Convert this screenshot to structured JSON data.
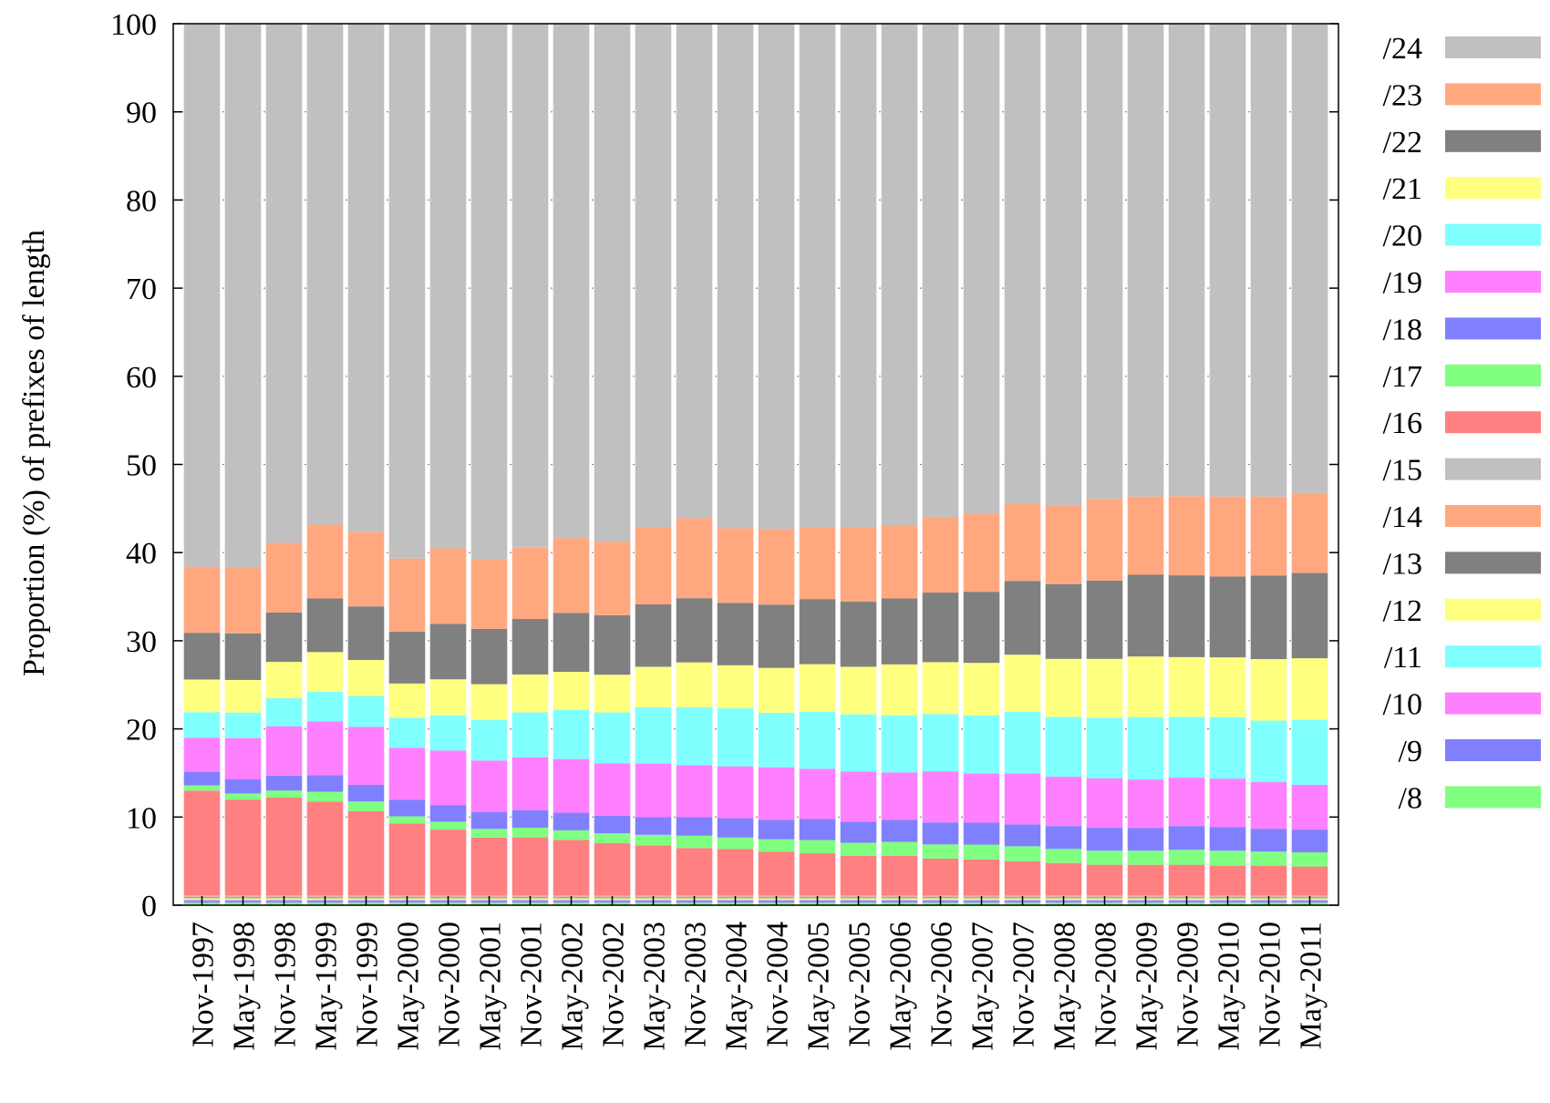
{
  "chart_data": {
    "type": "bar",
    "stacked": true,
    "title": "",
    "xlabel": "",
    "ylabel": "Proportion (%) of prefixes of length",
    "ylim": [
      0,
      100
    ],
    "yticks": [
      0,
      10,
      20,
      30,
      40,
      50,
      60,
      70,
      80,
      90,
      100
    ],
    "grid": "horizontal-dotted",
    "legend_position": "right",
    "categories": [
      "Nov-1997",
      "May-1998",
      "Nov-1998",
      "May-1999",
      "Nov-1999",
      "May-2000",
      "Nov-2000",
      "May-2001",
      "Nov-2001",
      "May-2002",
      "Nov-2002",
      "May-2003",
      "Nov-2003",
      "May-2004",
      "Nov-2004",
      "May-2005",
      "Nov-2005",
      "May-2006",
      "Nov-2006",
      "May-2007",
      "Nov-2007",
      "May-2008",
      "Nov-2008",
      "May-2009",
      "Nov-2009",
      "May-2010",
      "Nov-2010",
      "May-2011"
    ],
    "series": [
      {
        "name": "/8",
        "color": "#80ff80",
        "values": [
          0.3,
          0.3,
          0.3,
          0.3,
          0.3,
          0.3,
          0.3,
          0.3,
          0.3,
          0.3,
          0.3,
          0.3,
          0.3,
          0.3,
          0.3,
          0.3,
          0.3,
          0.3,
          0.3,
          0.3,
          0.3,
          0.3,
          0.3,
          0.3,
          0.3,
          0.3,
          0.3,
          0.3
        ]
      },
      {
        "name": "/9",
        "color": "#8080ff",
        "values": [
          0.2,
          0.2,
          0.2,
          0.2,
          0.2,
          0.2,
          0.2,
          0.2,
          0.2,
          0.2,
          0.2,
          0.2,
          0.2,
          0.2,
          0.2,
          0.2,
          0.2,
          0.2,
          0.2,
          0.2,
          0.2,
          0.2,
          0.2,
          0.2,
          0.2,
          0.2,
          0.2,
          0.2
        ]
      },
      {
        "name": "/10",
        "color": "#ff80ff",
        "values": [
          0.1,
          0.1,
          0.1,
          0.1,
          0.1,
          0.1,
          0.1,
          0.1,
          0.1,
          0.1,
          0.1,
          0.1,
          0.1,
          0.1,
          0.1,
          0.1,
          0.1,
          0.1,
          0.1,
          0.1,
          0.1,
          0.1,
          0.1,
          0.1,
          0.1,
          0.1,
          0.1,
          0.1
        ]
      },
      {
        "name": "/11",
        "color": "#80ffff",
        "values": [
          0.1,
          0.1,
          0.1,
          0.1,
          0.1,
          0.1,
          0.1,
          0.1,
          0.1,
          0.1,
          0.1,
          0.1,
          0.1,
          0.1,
          0.1,
          0.1,
          0.1,
          0.1,
          0.1,
          0.1,
          0.1,
          0.1,
          0.1,
          0.1,
          0.1,
          0.1,
          0.1,
          0.1
        ]
      },
      {
        "name": "/12",
        "color": "#ffff80",
        "values": [
          0.1,
          0.1,
          0.1,
          0.1,
          0.1,
          0.1,
          0.1,
          0.1,
          0.1,
          0.1,
          0.1,
          0.1,
          0.1,
          0.1,
          0.1,
          0.1,
          0.1,
          0.1,
          0.1,
          0.1,
          0.1,
          0.1,
          0.1,
          0.1,
          0.1,
          0.1,
          0.1,
          0.1
        ]
      },
      {
        "name": "/13",
        "color": "#808080",
        "values": [
          0.1,
          0.1,
          0.1,
          0.1,
          0.1,
          0.1,
          0.1,
          0.1,
          0.1,
          0.1,
          0.1,
          0.1,
          0.1,
          0.1,
          0.1,
          0.1,
          0.1,
          0.1,
          0.1,
          0.1,
          0.1,
          0.1,
          0.1,
          0.1,
          0.1,
          0.1,
          0.1,
          0.1
        ]
      },
      {
        "name": "/14",
        "color": "#ffa880",
        "values": [
          0.1,
          0.1,
          0.1,
          0.1,
          0.1,
          0.1,
          0.1,
          0.1,
          0.1,
          0.1,
          0.1,
          0.1,
          0.1,
          0.1,
          0.1,
          0.1,
          0.1,
          0.1,
          0.1,
          0.1,
          0.1,
          0.1,
          0.1,
          0.1,
          0.1,
          0.1,
          0.1,
          0.1
        ]
      },
      {
        "name": "/15",
        "color": "#c0c0c0",
        "values": [
          0.1,
          0.1,
          0.1,
          0.1,
          0.1,
          0.1,
          0.1,
          0.1,
          0.1,
          0.1,
          0.1,
          0.1,
          0.1,
          0.1,
          0.1,
          0.1,
          0.1,
          0.1,
          0.1,
          0.1,
          0.1,
          0.1,
          0.1,
          0.1,
          0.1,
          0.1,
          0.1,
          0.1
        ]
      },
      {
        "name": "/16",
        "color": "#ff8080",
        "values": [
          11.9,
          10.9,
          11.1,
          10.7,
          9.6,
          8.2,
          7.5,
          6.6,
          6.6,
          6.3,
          6.0,
          5.7,
          5.4,
          5.3,
          5.0,
          4.8,
          4.5,
          4.5,
          4.2,
          4.1,
          3.9,
          3.7,
          3.5,
          3.5,
          3.5,
          3.4,
          3.4,
          3.3
        ]
      },
      {
        "name": "/17",
        "color": "#80ff80",
        "values": [
          0.6,
          0.7,
          0.8,
          1.1,
          1.1,
          0.8,
          0.9,
          1.0,
          1.1,
          1.1,
          1.1,
          1.2,
          1.4,
          1.3,
          1.4,
          1.5,
          1.5,
          1.6,
          1.6,
          1.7,
          1.7,
          1.6,
          1.6,
          1.6,
          1.7,
          1.7,
          1.6,
          1.6
        ]
      },
      {
        "name": "/18",
        "color": "#8080ff",
        "values": [
          1.5,
          1.6,
          1.7,
          1.9,
          1.9,
          1.9,
          1.9,
          1.9,
          2.0,
          2.0,
          2.0,
          2.0,
          2.1,
          2.2,
          2.2,
          2.4,
          2.4,
          2.5,
          2.5,
          2.5,
          2.5,
          2.6,
          2.6,
          2.6,
          2.7,
          2.7,
          2.6,
          2.6
        ]
      },
      {
        "name": "/19",
        "color": "#ff80ff",
        "values": [
          3.9,
          4.7,
          5.6,
          6.1,
          6.6,
          5.9,
          6.2,
          5.9,
          6.0,
          6.1,
          6.0,
          6.1,
          5.9,
          5.9,
          6.0,
          5.7,
          5.7,
          5.4,
          5.8,
          5.6,
          5.8,
          5.6,
          5.6,
          5.5,
          5.5,
          5.5,
          5.3,
          5.1
        ]
      },
      {
        "name": "/20",
        "color": "#80ffff",
        "values": [
          2.9,
          2.9,
          3.2,
          3.4,
          3.5,
          3.4,
          4.0,
          4.6,
          5.1,
          5.6,
          5.8,
          6.4,
          6.6,
          6.6,
          6.2,
          6.5,
          6.5,
          6.5,
          6.5,
          6.6,
          7.0,
          6.8,
          6.9,
          7.1,
          6.9,
          7.0,
          7.0,
          7.4
        ]
      },
      {
        "name": "/21",
        "color": "#ffff80",
        "values": [
          3.7,
          3.7,
          4.1,
          4.5,
          4.1,
          3.9,
          4.1,
          4.1,
          4.3,
          4.3,
          4.3,
          4.6,
          5.1,
          4.9,
          5.1,
          5.4,
          5.4,
          5.8,
          5.9,
          6.0,
          6.5,
          6.6,
          6.7,
          6.9,
          6.8,
          6.8,
          7.0,
          7.0
        ]
      },
      {
        "name": "/22",
        "color": "#808080",
        "values": [
          5.3,
          5.3,
          5.6,
          6.1,
          6.1,
          5.9,
          6.3,
          6.3,
          6.3,
          6.7,
          6.8,
          7.1,
          7.3,
          7.1,
          7.2,
          7.4,
          7.4,
          7.5,
          7.9,
          8.1,
          8.4,
          8.5,
          8.9,
          9.3,
          9.3,
          9.2,
          9.5,
          9.7
        ]
      },
      {
        "name": "/23",
        "color": "#ffa880",
        "values": [
          7.5,
          7.5,
          7.9,
          8.4,
          8.5,
          8.3,
          8.6,
          7.9,
          8.1,
          8.5,
          8.4,
          8.8,
          9.1,
          8.5,
          8.6,
          8.2,
          8.5,
          8.3,
          8.5,
          8.9,
          8.8,
          8.9,
          9.3,
          8.9,
          9.0,
          9.1,
          9.0,
          9.1
        ]
      },
      {
        "name": "/24",
        "color": "#c0c0c0",
        "values": [
          61.6,
          61.8,
          58.9,
          57.0,
          57.8,
          60.8,
          59.7,
          61.1,
          59.5,
          58.4,
          59.1,
          57.2,
          56.2,
          57.4,
          57.5,
          57.2,
          57.2,
          57.1,
          56.1,
          55.8,
          54.6,
          54.8,
          54.0,
          53.8,
          53.7,
          53.8,
          53.8,
          53.4
        ]
      }
    ]
  }
}
